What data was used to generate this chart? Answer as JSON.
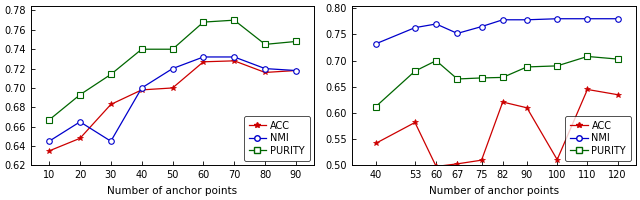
{
  "left": {
    "x": [
      10,
      20,
      30,
      40,
      50,
      60,
      70,
      80,
      90
    ],
    "acc": [
      0.635,
      0.648,
      0.683,
      0.698,
      0.7,
      0.727,
      0.728,
      0.716,
      0.718
    ],
    "nmi": [
      0.645,
      0.665,
      0.645,
      0.7,
      0.72,
      0.732,
      0.732,
      0.72,
      0.718
    ],
    "purity": [
      0.667,
      0.693,
      0.714,
      0.74,
      0.74,
      0.768,
      0.77,
      0.745,
      0.748
    ],
    "xlabel": "Number of anchor points",
    "ylim": [
      0.62,
      0.785
    ],
    "yticks": [
      0.62,
      0.64,
      0.66,
      0.68,
      0.7,
      0.72,
      0.74,
      0.76,
      0.78
    ],
    "xticks": [
      10,
      20,
      30,
      40,
      50,
      60,
      70,
      80,
      90
    ]
  },
  "right": {
    "x": [
      40,
      53,
      60,
      67,
      75,
      82,
      90,
      100,
      110,
      120
    ],
    "acc": [
      0.542,
      0.582,
      0.498,
      0.503,
      0.51,
      0.621,
      0.61,
      0.511,
      0.645,
      0.635
    ],
    "nmi": [
      0.732,
      0.763,
      0.77,
      0.752,
      0.765,
      0.778,
      0.778,
      0.78,
      0.78,
      0.78
    ],
    "purity": [
      0.612,
      0.68,
      0.7,
      0.665,
      0.667,
      0.668,
      0.688,
      0.69,
      0.708,
      0.703
    ],
    "xlabel": "Number of anchor points",
    "ylim": [
      0.5,
      0.805
    ],
    "yticks": [
      0.5,
      0.55,
      0.6,
      0.65,
      0.7,
      0.75,
      0.8
    ],
    "xticks": [
      40,
      53,
      60,
      67,
      75,
      82,
      90,
      100,
      110,
      120
    ]
  },
  "acc_color": "#cc0000",
  "nmi_color": "#0000cc",
  "purity_color": "#006600",
  "linewidth": 0.9,
  "markersize_acc": 4,
  "markersize_nmi": 4,
  "markersize_purity": 4,
  "legend_labels": [
    "ACC",
    "NMI",
    "PURITY"
  ],
  "tick_fontsize": 7,
  "label_fontsize": 7.5,
  "legend_fontsize": 7
}
